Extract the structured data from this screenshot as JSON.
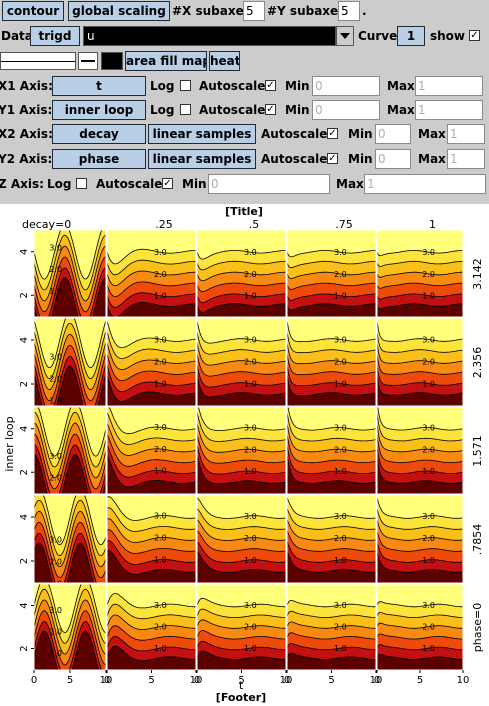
{
  "toolbar": {
    "contour_label": "contour",
    "global_scaling_label": "global scaling",
    "x_subaxes_label": "#X subaxes",
    "x_subaxes_value": "5",
    "y_subaxes_label": "#Y subaxes",
    "y_subaxes_value": "5",
    "trailing": "."
  },
  "data_row": {
    "data_label": "Data",
    "data_button": "trigd",
    "data_field_value": "u",
    "curve_label": "Curve",
    "curve_value": "1",
    "show_label": "show",
    "show_checked": true
  },
  "style_row": {
    "area_fill_map_label": "area fill map",
    "heat_label": "heat"
  },
  "axes": {
    "x1": {
      "label": "X1 Axis:",
      "button": "t",
      "log_label": "Log",
      "log_checked": false,
      "autoscale_label": "Autoscale",
      "autoscale_checked": true,
      "min_label": "Min",
      "min_value": "0",
      "max_label": "Max",
      "max_value": "1"
    },
    "y1": {
      "label": "Y1 Axis:",
      "button": "inner loop",
      "log_label": "Log",
      "log_checked": false,
      "autoscale_label": "Autoscale",
      "autoscale_checked": true,
      "min_label": "Min",
      "min_value": "0",
      "max_label": "Max",
      "max_value": "1"
    },
    "x2": {
      "label": "X2 Axis:",
      "button": "decay",
      "mode": "linear samples",
      "autoscale_label": "Autoscale",
      "autoscale_checked": true,
      "min_label": "Min",
      "min_value": "0",
      "max_label": "Max",
      "max_value": "1"
    },
    "y2": {
      "label": "Y2 Axis:",
      "button": "phase",
      "mode": "linear samples",
      "autoscale_label": "Autoscale",
      "autoscale_checked": true,
      "min_label": "Min",
      "min_value": "0",
      "max_label": "Max",
      "max_value": "1"
    },
    "z": {
      "label": "Z Axis:",
      "log_label": "Log",
      "log_checked": false,
      "autoscale_label": "Autoscale",
      "autoscale_checked": true,
      "min_label": "Min",
      "min_value": "0",
      "max_label": "Max",
      "max_value": "1"
    }
  },
  "colors": {
    "panel_bg": "#cccccc",
    "button_bg": "#b8cfe5",
    "fill_levels": [
      "#5c0000",
      "#c41010",
      "#ee4a0c",
      "#f88a14",
      "#fbbf1a",
      "#fde43a",
      "#ffff7a"
    ]
  },
  "chart_data": {
    "type": "contour",
    "title": "[Title]",
    "footer": "[Footer]",
    "xlabel": "t",
    "ylabel": "inner loop",
    "column_axis": "decay",
    "row_axis": "phase",
    "column_labels": [
      "decay=0",
      ".25",
      ".5",
      ".75",
      "1"
    ],
    "row_labels": [
      "3.142",
      "2.356",
      "1.571",
      ".7854",
      "phase=0"
    ],
    "x_ticks": [
      "0",
      "5",
      "10"
    ],
    "y_ticks": [
      "2",
      "4"
    ],
    "xlim": [
      0,
      10
    ],
    "ylim": [
      1,
      5
    ],
    "contour_labels": [
      "1.0",
      "2.0",
      "3.0"
    ],
    "contour_levels": [
      1,
      2,
      3
    ],
    "colormap": "heat"
  }
}
